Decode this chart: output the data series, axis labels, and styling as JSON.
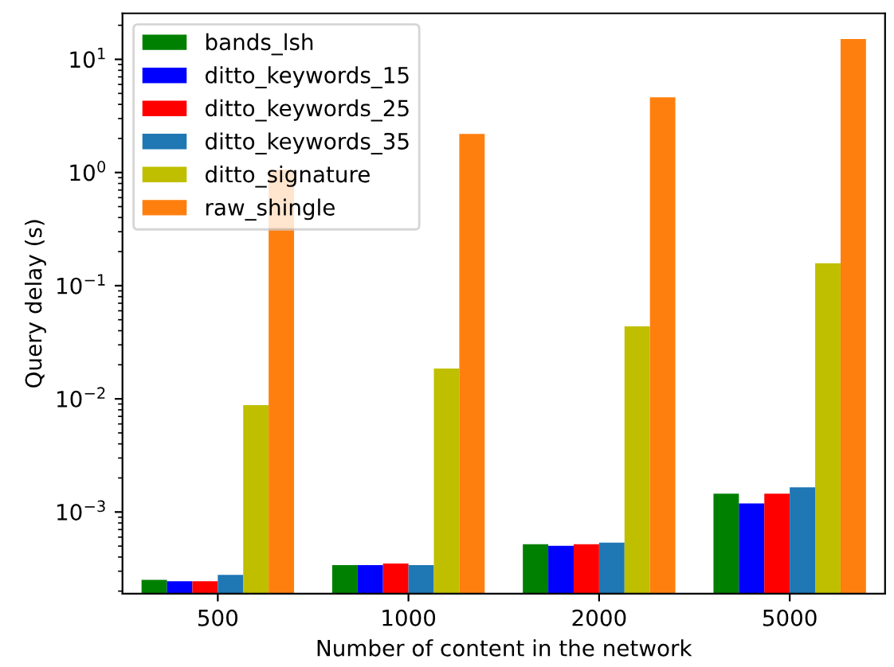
{
  "chart_data": {
    "type": "bar",
    "xlabel": "Number of content in the network",
    "ylabel": "Query delay (s)",
    "categories": [
      "500",
      "1000",
      "2000",
      "5000"
    ],
    "series": [
      {
        "name": "bands_lsh",
        "color": "#008000",
        "values": [
          0.000252,
          0.000339,
          0.00052,
          0.00145
        ]
      },
      {
        "name": "ditto_keywords_15",
        "color": "#0000ff",
        "values": [
          0.000244,
          0.000339,
          0.000503,
          0.00119
        ]
      },
      {
        "name": "ditto_keywords_25",
        "color": "#ff0000",
        "values": [
          0.000244,
          0.00035,
          0.00052,
          0.00145
        ]
      },
      {
        "name": "ditto_keywords_35",
        "color": "#1f77b4",
        "values": [
          0.000278,
          0.000339,
          0.000537,
          0.00165
        ]
      },
      {
        "name": "ditto_signature",
        "color": "#bfbf00",
        "values": [
          0.0088,
          0.0185,
          0.0437,
          0.158
        ]
      },
      {
        "name": "raw_shingle",
        "color": "#ff7f0e",
        "values": [
          1.06,
          2.19,
          4.62,
          15.1
        ]
      }
    ],
    "log": "y",
    "ylim": [
      0.00019,
      25.5
    ],
    "yticks": [
      {
        "value": 0.001,
        "label": "10$^{−3}$"
      },
      {
        "value": 0.01,
        "label": "10$^{−2}$"
      },
      {
        "value": 0.1,
        "label": "10$^{−1}$"
      },
      {
        "value": 1,
        "label": "10$^{0}$"
      },
      {
        "value": 10,
        "label": "10$^{1}$"
      }
    ],
    "legend": "top left",
    "grid": false
  }
}
